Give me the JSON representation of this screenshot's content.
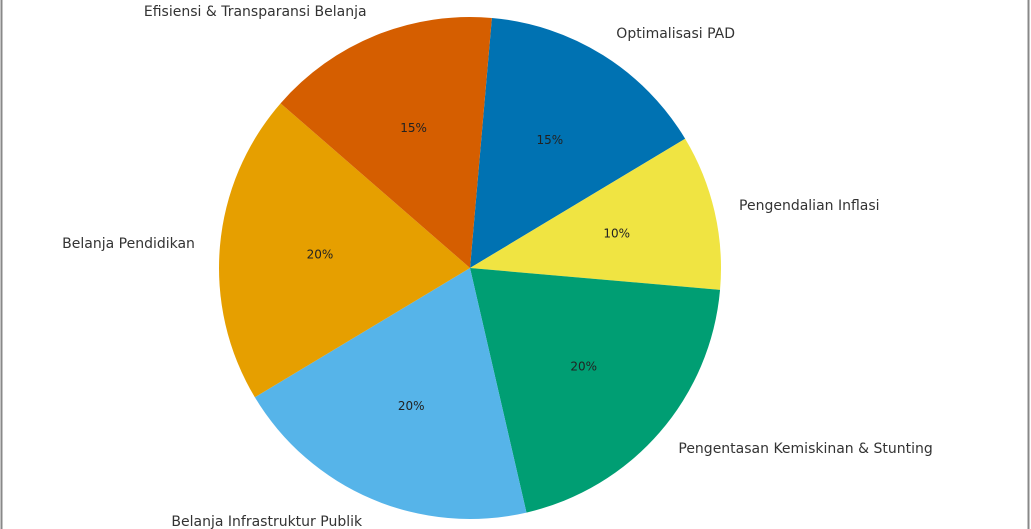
{
  "chart_data": {
    "type": "pie",
    "categories": [
      "Optimalisasi PAD",
      "Pengendalian Inflasi",
      "Pengentasan Kemiskinan & Stunting",
      "Belanja Infrastruktur Publik",
      "Belanja Pendidikan",
      "Efisiensi & Transparansi Belanja"
    ],
    "values": [
      15,
      10,
      20,
      20,
      20,
      15
    ],
    "value_labels": [
      "15%",
      "10%",
      "20%",
      "20%",
      "20%",
      "15%"
    ],
    "colors": [
      "#0072b2",
      "#f0e442",
      "#009e73",
      "#56b4e9",
      "#e69f00",
      "#d55e00"
    ]
  }
}
